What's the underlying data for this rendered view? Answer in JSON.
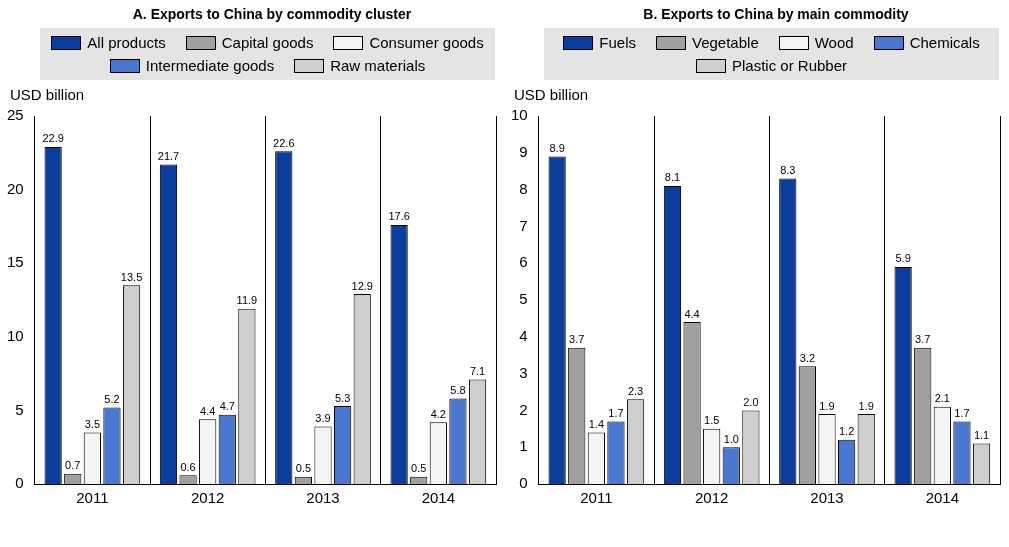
{
  "chart_data": [
    {
      "type": "bar",
      "title": "A. Exports to China by commodity cluster",
      "ylabel": "USD billion",
      "categories": [
        "2011",
        "2012",
        "2013",
        "2014"
      ],
      "ylim": [
        0,
        25
      ],
      "yticks": [
        0,
        5,
        10,
        15,
        20,
        25
      ],
      "grid": "x",
      "legend": "top",
      "data_labels": true,
      "series": [
        {
          "name": "All products",
          "color": "#0b3d9c",
          "values": [
            22.9,
            21.7,
            22.6,
            17.6
          ]
        },
        {
          "name": "Capital goods",
          "color": "#a0a0a0",
          "values": [
            0.7,
            0.6,
            0.5,
            0.5
          ]
        },
        {
          "name": "Consumer goods",
          "color": "#f4f4f4",
          "values": [
            3.5,
            4.4,
            3.9,
            4.2
          ]
        },
        {
          "name": "Intermediate goods",
          "color": "#4a78d0",
          "values": [
            5.2,
            4.7,
            5.3,
            5.8
          ]
        },
        {
          "name": "Raw materials",
          "color": "#cfcfcf",
          "values": [
            13.5,
            11.9,
            12.9,
            7.1
          ]
        }
      ]
    },
    {
      "type": "bar",
      "title": "B. Exports to China by main commodity",
      "ylabel": "USD billion",
      "categories": [
        "2011",
        "2012",
        "2013",
        "2014"
      ],
      "ylim": [
        0,
        10
      ],
      "yticks": [
        0,
        1,
        2,
        3,
        4,
        5,
        6,
        7,
        8,
        9,
        10
      ],
      "grid": "x",
      "legend": "top",
      "series": [
        {
          "name": "Fuels",
          "color": "#0b3d9c",
          "values": [
            8.9,
            8.1,
            8.3,
            5.9
          ],
          "value_labels": [
            "8.9",
            "8.1",
            "8.3",
            "5.9"
          ]
        },
        {
          "name": "Vegetable",
          "color": "#a0a0a0",
          "values": [
            3.7,
            4.4,
            3.2,
            3.7
          ],
          "value_labels": [
            "3.7",
            "4.4",
            "3.2",
            "3.7"
          ]
        },
        {
          "name": "Wood",
          "color": "#f4f4f4",
          "values": [
            1.4,
            1.5,
            1.9,
            2.1
          ],
          "value_labels": [
            "1.4",
            "1.5",
            "1.9",
            "2.1"
          ]
        },
        {
          "name": "Chemicals",
          "color": "#4a78d0",
          "values": [
            1.7,
            1.0,
            1.2,
            1.7
          ],
          "value_labels": [
            "1.7",
            "1.0",
            "1.2",
            "1.7"
          ]
        },
        {
          "name": "Plastic or Rubber",
          "color": "#cfcfcf",
          "values": [
            2.3,
            2.0,
            1.9,
            1.1
          ],
          "value_labels": [
            "2.3",
            "2.0",
            "1.9",
            "1.1"
          ]
        }
      ]
    }
  ]
}
